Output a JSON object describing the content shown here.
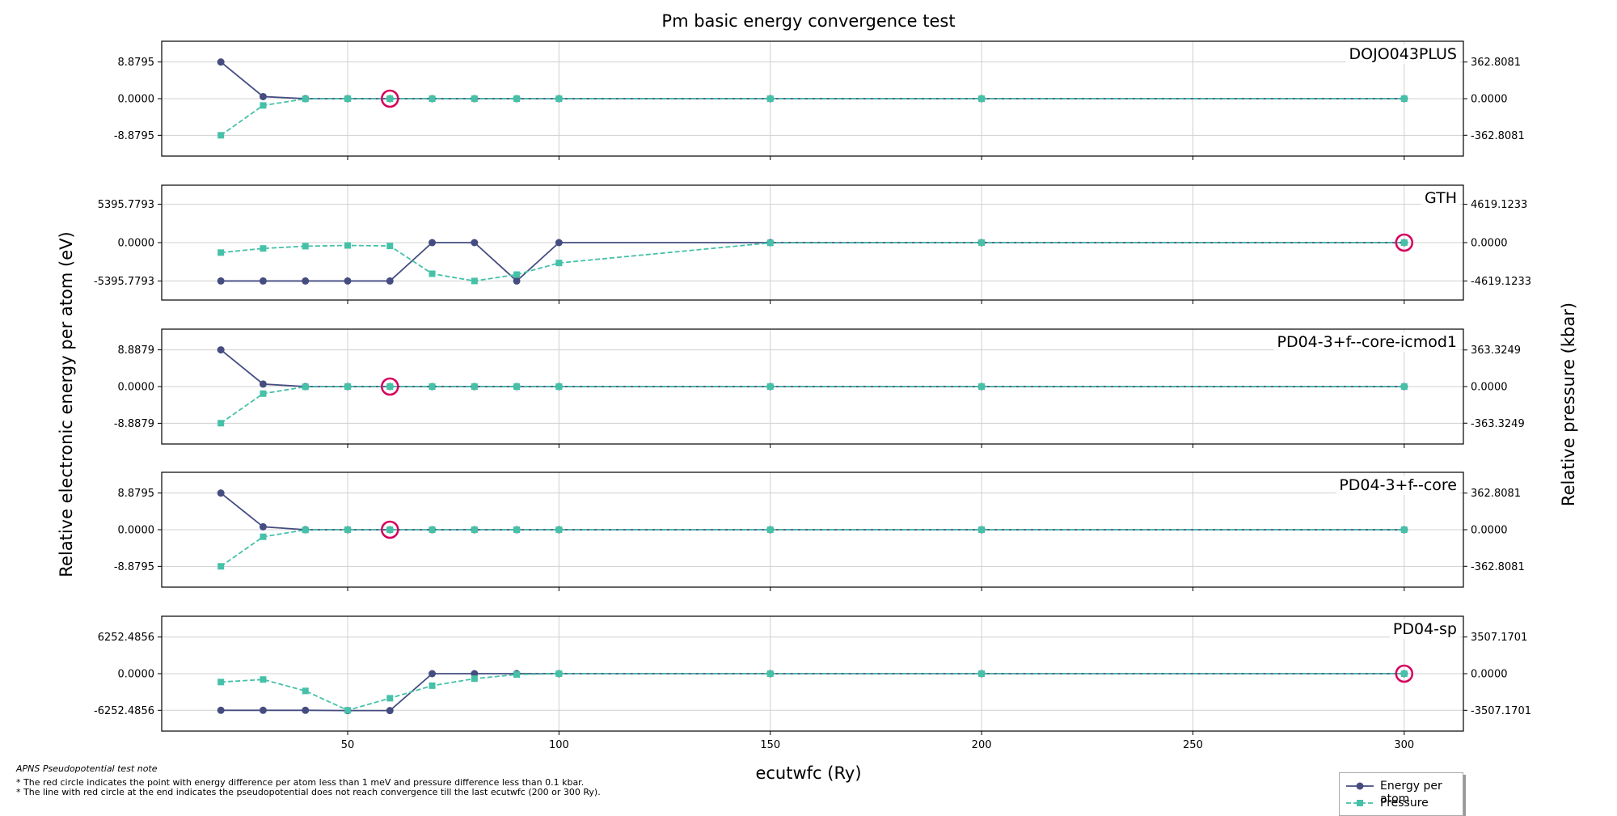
{
  "figure": {
    "title": "Pm basic energy convergence test",
    "xlabel": "ecutwfc (Ry)",
    "ylabel_left": "Relative electronic energy per atom (eV)",
    "ylabel_right": "Relative pressure (kbar)",
    "note_title": "APNS Pseudopotential test note",
    "note_lines": [
      "* The red circle indicates the point with energy difference per atom less than 1 meV and pressure difference less than 0.1 kbar.",
      "* The line with red circle at the end indicates the pseudopotential does not reach convergence till the last ecutwfc (200 or 300 Ry)."
    ],
    "legend": {
      "energy": "Energy per atom",
      "pressure": "Pressure"
    },
    "colors": {
      "energy": "#454d80",
      "pressure": "#45c1a8",
      "marker_circle": "#d6005f",
      "grid": "#d0d0d0"
    }
  },
  "chart_data": [
    {
      "type": "line",
      "title": "DOJO043PLUS",
      "x": [
        20,
        30,
        40,
        50,
        60,
        70,
        80,
        90,
        100,
        150,
        200,
        300
      ],
      "xticks": [
        50,
        100,
        150,
        200,
        250,
        300
      ],
      "xlim": [
        6,
        314
      ],
      "ylim_left": [
        -13.9,
        13.9
      ],
      "ylim_right": [
        -569,
        569
      ],
      "yticks_left": [
        "8.8795",
        "0.0000",
        "-8.8795"
      ],
      "yticks_left_values": [
        8.8795,
        0,
        -8.8795
      ],
      "yticks_right": [
        "362.8081",
        "0.0000",
        "-362.8081"
      ],
      "yticks_right_values": [
        362.8081,
        0,
        -362.8081
      ],
      "series": [
        {
          "name": "Energy per atom",
          "axis": "left",
          "values": [
            8.8795,
            0.5,
            0,
            0,
            0,
            0,
            0,
            0,
            0,
            0,
            0,
            0
          ]
        },
        {
          "name": "Pressure",
          "axis": "right",
          "values": [
            -362.8081,
            -67,
            -2,
            0,
            0,
            0,
            0,
            0,
            0,
            0,
            0,
            0
          ]
        }
      ],
      "converged_x": 60
    },
    {
      "type": "line",
      "title": "GTH",
      "x": [
        20,
        30,
        40,
        50,
        60,
        70,
        80,
        90,
        100,
        150,
        200,
        300
      ],
      "xticks": [
        50,
        100,
        150,
        200,
        250,
        300
      ],
      "xlim": [
        6,
        314
      ],
      "ylim_left": [
        -8080,
        8080
      ],
      "ylim_right": [
        -6917,
        6917
      ],
      "yticks_left": [
        "5395.7793",
        "0.0000",
        "-5395.7793"
      ],
      "yticks_left_values": [
        5395.7793,
        0,
        -5395.7793
      ],
      "yticks_right": [
        "4619.1233",
        "0.0000",
        "-4619.1233"
      ],
      "yticks_right_values": [
        4619.1233,
        0,
        -4619.1233
      ],
      "series": [
        {
          "name": "Energy per atom",
          "axis": "left",
          "values": [
            -5395.7793,
            -5395.7793,
            -5395.7793,
            -5395.7793,
            -5395.7793,
            0,
            0,
            -5395.7793,
            0,
            0,
            0,
            0
          ]
        },
        {
          "name": "Pressure",
          "axis": "right",
          "values": [
            -1200,
            -700,
            -430,
            -340,
            -400,
            -3750,
            -4619.1233,
            -3850,
            -2450,
            -30,
            0,
            0
          ]
        }
      ],
      "converged_x": 300
    },
    {
      "type": "line",
      "title": "PD04-3+f--core-icmod1",
      "x": [
        20,
        30,
        40,
        50,
        60,
        70,
        80,
        90,
        100,
        150,
        200,
        300
      ],
      "xticks": [
        50,
        100,
        150,
        200,
        250,
        300
      ],
      "xlim": [
        6,
        314
      ],
      "ylim_left": [
        -13.9,
        13.9
      ],
      "ylim_right": [
        -570,
        570
      ],
      "yticks_left": [
        "8.8879",
        "0.0000",
        "-8.8879"
      ],
      "yticks_left_values": [
        8.8879,
        0,
        -8.8879
      ],
      "yticks_right": [
        "363.3249",
        "0.0000",
        "-363.3249"
      ],
      "yticks_right_values": [
        363.3249,
        0,
        -363.3249
      ],
      "series": [
        {
          "name": "Energy per atom",
          "axis": "left",
          "values": [
            8.8879,
            0.6,
            0,
            0,
            0,
            0,
            0,
            0,
            0,
            0,
            0,
            0
          ]
        },
        {
          "name": "Pressure",
          "axis": "right",
          "values": [
            -363.3249,
            -70,
            -2,
            0,
            0,
            0,
            0,
            0,
            0,
            0,
            0,
            0
          ]
        }
      ],
      "converged_x": 60
    },
    {
      "type": "line",
      "title": "PD04-3+f--core",
      "x": [
        20,
        30,
        40,
        50,
        60,
        70,
        80,
        90,
        100,
        150,
        200,
        300
      ],
      "xticks": [
        50,
        100,
        150,
        200,
        250,
        300
      ],
      "xlim": [
        6,
        314
      ],
      "ylim_left": [
        -13.9,
        13.9
      ],
      "ylim_right": [
        -569,
        569
      ],
      "yticks_left": [
        "8.8795",
        "0.0000",
        "-8.8795"
      ],
      "yticks_left_values": [
        8.8795,
        0,
        -8.8795
      ],
      "yticks_right": [
        "362.8081",
        "0.0000",
        "-362.8081"
      ],
      "yticks_right_values": [
        362.8081,
        0,
        -362.8081
      ],
      "series": [
        {
          "name": "Energy per atom",
          "axis": "left",
          "values": [
            8.8795,
            0.7,
            0,
            0,
            0,
            0,
            0,
            0,
            0,
            0,
            0,
            0
          ]
        },
        {
          "name": "Pressure",
          "axis": "right",
          "values": [
            -362.8081,
            -70,
            -2,
            0,
            0,
            0,
            0,
            0,
            0,
            0,
            0,
            0
          ]
        }
      ],
      "converged_x": 60
    },
    {
      "type": "line",
      "title": "PD04-sp",
      "x": [
        20,
        30,
        40,
        50,
        60,
        70,
        80,
        90,
        100,
        150,
        200,
        300
      ],
      "xticks": [
        50,
        100,
        150,
        200,
        250,
        300
      ],
      "xlim": [
        6,
        314
      ],
      "ylim_left": [
        -9800,
        9800
      ],
      "ylim_right": [
        -5495,
        5495
      ],
      "yticks_left": [
        "6252.4856",
        "0.0000",
        "-6252.4856"
      ],
      "yticks_left_values": [
        6252.4856,
        0,
        -6252.4856
      ],
      "yticks_right": [
        "3507.1701",
        "0.0000",
        "-3507.1701"
      ],
      "yticks_right_values": [
        3507.1701,
        0,
        -3507.1701
      ],
      "series": [
        {
          "name": "Energy per atom",
          "axis": "left",
          "values": [
            -6252.4856,
            -6252.4856,
            -6252.4856,
            -6300,
            -6300,
            0,
            0,
            0,
            0,
            0,
            0,
            0
          ]
        },
        {
          "name": "Pressure",
          "axis": "right",
          "values": [
            -800,
            -560,
            -1650,
            -3507.1701,
            -2350,
            -1150,
            -480,
            -80,
            0,
            0,
            0,
            0
          ]
        }
      ],
      "converged_x": 300
    }
  ]
}
